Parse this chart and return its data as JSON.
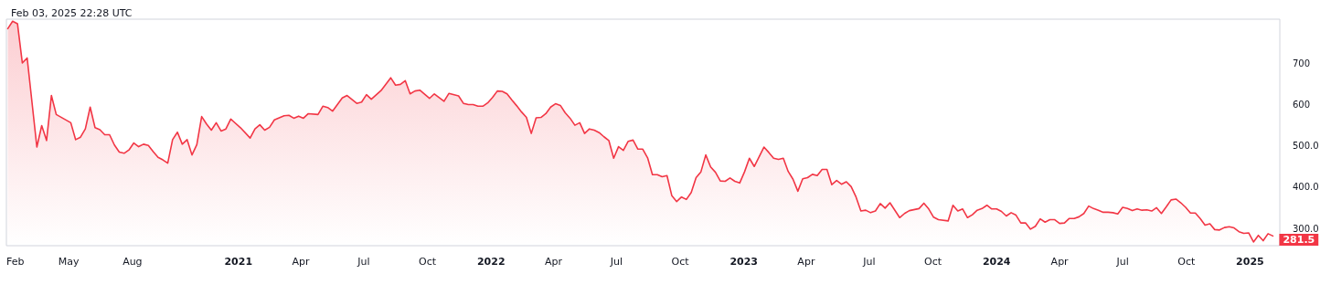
{
  "chart_data": {
    "type": "area",
    "title": "Feb 03, 2025 22:28 UTC",
    "x": [
      "2020-02-03",
      "2020-02-10",
      "2020-02-17",
      "2020-02-24",
      "2020-03-02",
      "2020-03-16",
      "2020-03-23",
      "2020-03-30",
      "2020-04-06",
      "2020-04-13",
      "2020-05-04",
      "2020-05-11",
      "2020-05-18",
      "2020-05-25",
      "2020-06-01",
      "2020-06-08",
      "2020-06-15",
      "2020-06-22",
      "2020-06-29",
      "2020-07-06",
      "2020-07-13",
      "2020-07-20",
      "2020-07-27",
      "2020-08-03",
      "2020-08-10",
      "2020-08-17",
      "2020-08-24",
      "2020-08-31",
      "2020-09-07",
      "2020-09-14",
      "2020-09-21",
      "2020-09-28",
      "2020-10-05",
      "2020-10-12",
      "2020-10-19",
      "2020-10-26",
      "2020-11-02",
      "2020-11-09",
      "2020-11-16",
      "2020-11-23",
      "2020-11-30",
      "2020-12-07",
      "2020-12-14",
      "2020-12-21",
      "2021-01-04",
      "2021-01-18",
      "2021-01-25",
      "2021-02-01",
      "2021-02-08",
      "2021-02-15",
      "2021-02-22",
      "2021-03-08",
      "2021-03-15",
      "2021-03-22",
      "2021-03-29",
      "2021-04-05",
      "2021-04-12",
      "2021-04-26",
      "2021-05-03",
      "2021-05-10",
      "2021-05-17",
      "2021-05-31",
      "2021-06-07",
      "2021-06-21",
      "2021-06-28",
      "2021-07-05",
      "2021-07-12",
      "2021-07-26",
      "2021-08-09",
      "2021-08-16",
      "2021-08-23",
      "2021-08-30",
      "2021-09-06",
      "2021-09-13",
      "2021-09-20",
      "2021-10-04",
      "2021-10-11",
      "2021-10-25",
      "2021-11-01",
      "2021-11-15",
      "2021-11-22",
      "2021-11-29",
      "2021-12-06",
      "2021-12-13",
      "2021-12-20",
      "2021-12-27",
      "2022-01-03",
      "2022-01-10",
      "2022-01-17",
      "2022-01-24",
      "2022-01-31",
      "2022-02-07",
      "2022-02-14",
      "2022-02-21",
      "2022-02-28",
      "2022-03-07",
      "2022-03-14",
      "2022-03-21",
      "2022-03-28",
      "2022-04-04",
      "2022-04-11",
      "2022-04-18",
      "2022-04-25",
      "2022-05-02",
      "2022-05-09",
      "2022-05-16",
      "2022-05-23",
      "2022-05-30",
      "2022-06-06",
      "2022-06-13",
      "2022-06-20",
      "2022-06-27",
      "2022-07-04",
      "2022-07-11",
      "2022-07-18",
      "2022-07-25",
      "2022-08-01",
      "2022-08-08",
      "2022-08-15",
      "2022-08-22",
      "2022-08-29",
      "2022-09-05",
      "2022-09-12",
      "2022-09-19",
      "2022-09-26",
      "2022-10-03",
      "2022-10-10",
      "2022-10-17",
      "2022-10-24",
      "2022-10-31",
      "2022-11-07",
      "2022-11-14",
      "2022-11-21",
      "2022-11-28",
      "2022-12-05",
      "2022-12-12",
      "2022-12-19",
      "2022-12-26",
      "2023-01-02",
      "2023-01-09",
      "2023-01-16",
      "2023-01-30",
      "2023-02-06",
      "2023-02-13",
      "2023-02-20",
      "2023-02-27",
      "2023-03-06",
      "2023-03-13",
      "2023-03-20",
      "2023-03-27",
      "2023-04-03",
      "2023-04-10",
      "2023-04-17",
      "2023-04-24",
      "2023-05-01",
      "2023-05-08",
      "2023-05-15",
      "2023-05-22",
      "2023-05-29",
      "2023-06-05",
      "2023-06-12",
      "2023-06-19",
      "2023-06-26",
      "2023-07-03",
      "2023-07-10",
      "2023-07-17",
      "2023-07-24",
      "2023-07-31",
      "2023-08-14",
      "2023-08-21",
      "2023-08-28",
      "2023-09-11",
      "2023-09-18",
      "2023-09-25",
      "2023-10-02",
      "2023-10-09",
      "2023-10-23",
      "2023-10-30",
      "2023-11-06",
      "2023-11-13",
      "2023-11-20",
      "2023-11-27",
      "2023-12-04",
      "2023-12-11",
      "2023-12-18",
      "2023-12-25",
      "2024-01-01",
      "2024-01-08",
      "2024-01-15",
      "2024-01-22",
      "2024-01-29",
      "2024-02-05",
      "2024-02-12",
      "2024-02-19",
      "2024-02-26",
      "2024-03-04",
      "2024-03-11",
      "2024-03-18",
      "2024-03-25",
      "2024-04-01",
      "2024-04-08",
      "2024-04-15",
      "2024-04-22",
      "2024-04-29",
      "2024-05-06",
      "2024-05-13",
      "2024-05-20",
      "2024-05-27",
      "2024-06-03",
      "2024-06-10",
      "2024-06-17",
      "2024-06-24",
      "2024-07-01",
      "2024-07-08",
      "2024-07-15",
      "2024-07-22",
      "2024-07-29",
      "2024-08-05",
      "2024-08-12",
      "2024-08-19",
      "2024-08-26",
      "2024-09-02",
      "2024-09-09",
      "2024-09-16",
      "2024-09-23",
      "2024-09-30",
      "2024-10-07",
      "2024-10-14",
      "2024-10-21",
      "2024-10-28",
      "2024-11-04",
      "2024-11-11",
      "2024-11-18",
      "2024-11-25",
      "2024-12-02",
      "2024-12-09",
      "2024-12-16",
      "2024-12-23",
      "2024-12-30",
      "2025-01-06",
      "2025-01-13",
      "2025-01-20",
      "2025-01-27",
      "2025-02-03"
    ],
    "series": [
      {
        "color": "#f23645",
        "values": [
          784,
          802,
          796,
          701,
          713,
          497,
          549,
          513,
          622,
          576,
          556,
          515,
          521,
          541,
          594,
          544,
          539,
          527,
          527,
          502,
          485,
          482,
          490,
          507,
          498,
          504,
          501,
          486,
          472,
          466,
          458,
          515,
          533,
          504,
          515,
          478,
          503,
          571,
          553,
          538,
          556,
          536,
          541,
          565,
          544,
          519,
          541,
          551,
          538,
          545,
          563,
          573,
          574,
          567,
          572,
          567,
          578,
          576,
          596,
          593,
          584,
          616,
          622,
          603,
          606,
          624,
          613,
          634,
          665,
          647,
          649,
          658,
          626,
          633,
          635,
          615,
          626,
          608,
          627,
          621,
          603,
          600,
          600,
          596,
          596,
          604,
          617,
          633,
          632,
          626,
          611,
          597,
          582,
          569,
          530,
          568,
          569,
          578,
          594,
          602,
          598,
          580,
          567,
          550,
          556,
          530,
          541,
          538,
          532,
          522,
          513,
          470,
          498,
          489,
          511,
          514,
          492,
          492,
          471,
          430,
          430,
          425,
          428,
          379,
          365,
          376,
          370,
          387,
          423,
          437,
          478,
          449,
          436,
          415,
          414,
          422,
          414,
          410,
          437,
          470,
          450,
          497,
          484,
          470,
          467,
          470,
          438,
          419,
          390,
          420,
          423,
          431,
          428,
          443,
          443,
          406,
          416,
          407,
          413,
          401,
          376,
          342,
          344,
          338,
          342,
          360,
          349,
          362,
          326,
          336,
          343,
          348,
          361,
          347,
          327,
          321,
          318,
          356,
          342,
          347,
          326,
          333,
          344,
          348,
          356,
          347,
          347,
          341,
          330,
          338,
          332,
          313,
          313,
          298,
          305,
          323,
          315,
          321,
          321,
          312,
          313,
          324,
          324,
          328,
          336,
          354,
          348,
          344,
          339,
          339,
          338,
          335,
          351,
          348,
          343,
          347,
          344,
          345,
          342,
          350,
          336,
          352,
          369,
          371,
          362,
          351,
          337,
          337,
          324,
          308,
          311,
          297,
          296,
          302,
          304,
          301,
          292,
          288,
          289,
          267,
          283,
          270,
          287,
          281.5
        ]
      }
    ],
    "xlim": [
      "2020-02-01",
      "2025-02-13"
    ],
    "xticks": [
      {
        "value": "2020-02-01",
        "label": "Feb"
      },
      {
        "value": "2020-05-01",
        "label": "May"
      },
      {
        "value": "2020-08-01",
        "label": "Aug"
      },
      {
        "value": "2021-01-01",
        "label": "2021"
      },
      {
        "value": "2021-04-01",
        "label": "Apr"
      },
      {
        "value": "2021-07-01",
        "label": "Jul"
      },
      {
        "value": "2021-10-01",
        "label": "Oct"
      },
      {
        "value": "2022-01-01",
        "label": "2022"
      },
      {
        "value": "2022-04-01",
        "label": "Apr"
      },
      {
        "value": "2022-07-01",
        "label": "Jul"
      },
      {
        "value": "2022-10-01",
        "label": "Oct"
      },
      {
        "value": "2023-01-01",
        "label": "2023"
      },
      {
        "value": "2023-04-01",
        "label": "Apr"
      },
      {
        "value": "2023-07-01",
        "label": "Jul"
      },
      {
        "value": "2023-10-01",
        "label": "Oct"
      },
      {
        "value": "2024-01-01",
        "label": "2024"
      },
      {
        "value": "2024-04-01",
        "label": "Apr"
      },
      {
        "value": "2024-07-01",
        "label": "Jul"
      },
      {
        "value": "2024-10-01",
        "label": "Oct"
      },
      {
        "value": "2025-01-01",
        "label": "2025"
      }
    ],
    "ylim": [
      258,
      807
    ],
    "yticks": [
      {
        "value": 300,
        "label": "300.0"
      },
      {
        "value": 400,
        "label": "400.0"
      },
      {
        "value": 500,
        "label": "500.0"
      },
      600,
      700
    ],
    "annotations": [
      {
        "text": "281.5",
        "x": "2025-02-03",
        "y": 281.5
      }
    ],
    "marker": "none",
    "line_style": "solid",
    "grid": false
  }
}
